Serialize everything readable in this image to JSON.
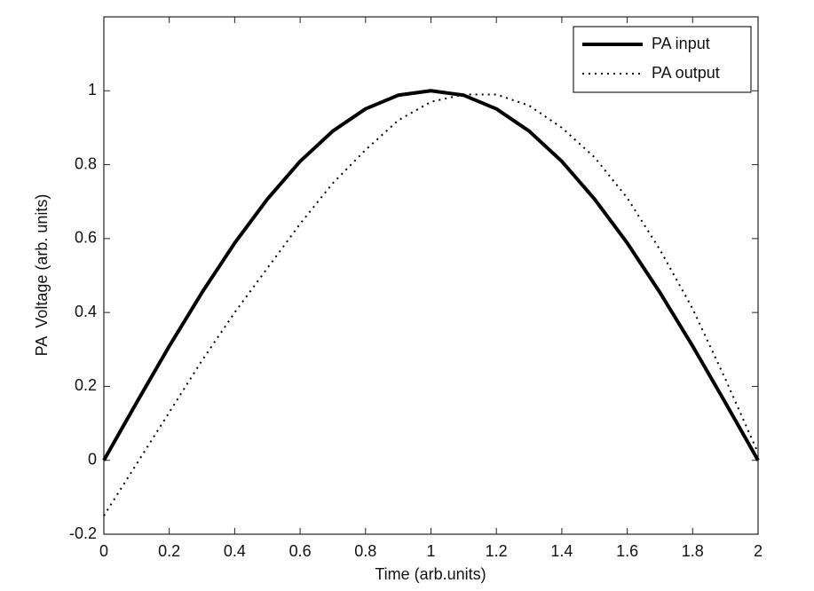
{
  "chart_data": {
    "type": "line",
    "x_label": "Time (arb.units)",
    "y_label": "PA  Voltage (arb. units)",
    "x": [
      0,
      0.1,
      0.2,
      0.3,
      0.4,
      0.5,
      0.6,
      0.7,
      0.8,
      0.9,
      1,
      1.1,
      1.2,
      1.3,
      1.4,
      1.5,
      1.6,
      1.7,
      1.8,
      1.9,
      2
    ],
    "series": [
      {
        "name": "PA input",
        "color": "#000000",
        "linestyle": "solid",
        "values": [
          0,
          0.156,
          0.309,
          0.454,
          0.588,
          0.707,
          0.809,
          0.891,
          0.951,
          0.988,
          1,
          0.988,
          0.951,
          0.891,
          0.809,
          0.707,
          0.588,
          0.454,
          0.309,
          0.156,
          0
        ]
      },
      {
        "name": "PA output",
        "color": "#000000",
        "linestyle": "dotted",
        "values": [
          -0.15,
          -0.01,
          0.13,
          0.27,
          0.4,
          0.52,
          0.64,
          0.75,
          0.84,
          0.92,
          0.97,
          0.99,
          0.99,
          0.96,
          0.9,
          0.82,
          0.71,
          0.57,
          0.41,
          0.22,
          0.02
        ]
      }
    ],
    "xlim": [
      0,
      2
    ],
    "xticks": [
      0,
      0.2,
      0.4,
      0.6,
      0.8,
      1,
      1.2,
      1.4,
      1.6,
      1.8,
      2
    ],
    "ylim": [
      -0.2,
      1.2
    ],
    "yticks": [
      -0.2,
      0,
      0.2,
      0.4,
      0.6,
      0.8,
      1
    ],
    "grid": false,
    "legend": "upper-right"
  }
}
